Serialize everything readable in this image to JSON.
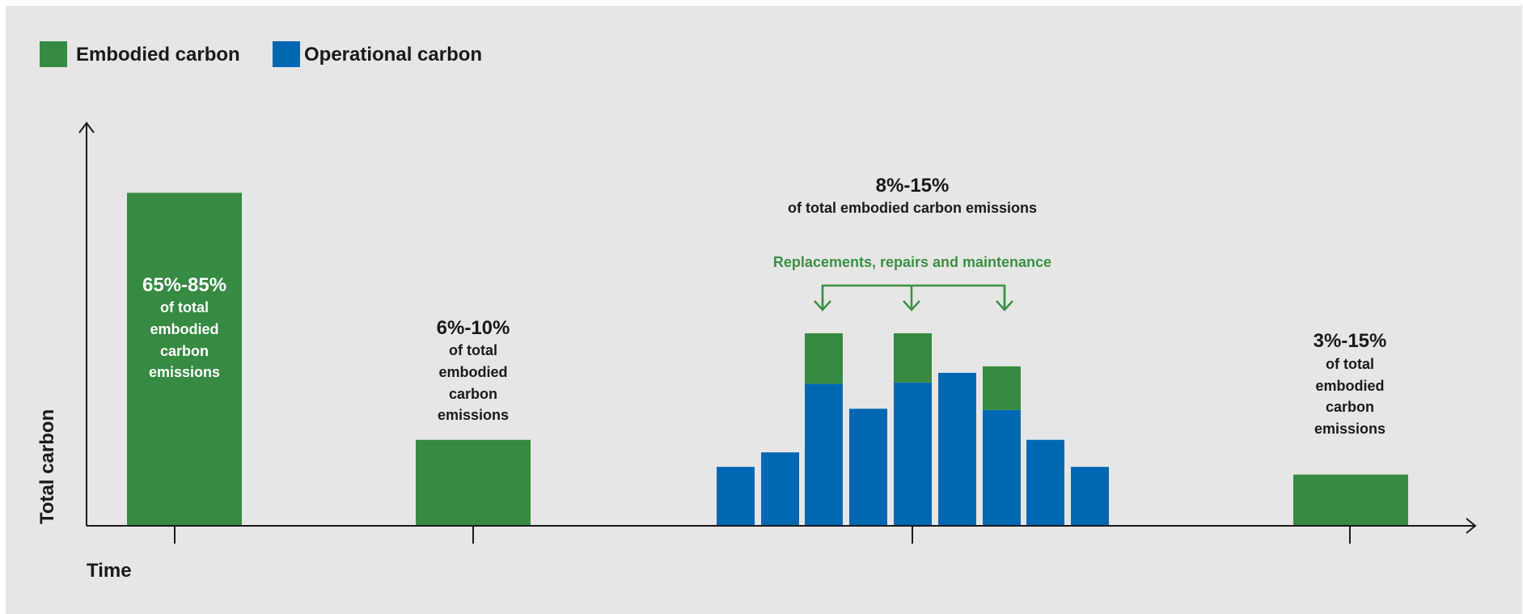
{
  "colors": {
    "embodied": "#368a42",
    "operational": "#0068b3",
    "annotation": "#3a9143",
    "text_dark": "#1a1a1a",
    "text_light": "#ffffff",
    "background": "#e6e6e6"
  },
  "chart_data": {
    "type": "bar",
    "stacked": true,
    "xlabel": "Time",
    "ylabel": "Total carbon",
    "ylim": [
      0,
      100
    ],
    "legend_position": "top-left",
    "series": [
      {
        "name": "Embodied carbon",
        "color": "#368a42",
        "key": "embodied"
      },
      {
        "name": "Operational carbon",
        "color": "#0068b3",
        "key": "operational"
      }
    ],
    "bars": [
      {
        "embodied": 82.3,
        "operational": 0
      },
      {
        "embodied": 21.1,
        "operational": 0
      },
      {
        "embodied": 0,
        "operational": 14.4
      },
      {
        "embodied": 0,
        "operational": 18.0
      },
      {
        "embodied": 12.5,
        "operational": 35.0
      },
      {
        "embodied": 0,
        "operational": 28.8
      },
      {
        "embodied": 12.2,
        "operational": 35.3
      },
      {
        "embodied": 0,
        "operational": 37.7
      },
      {
        "embodied": 10.8,
        "operational": 28.5
      },
      {
        "embodied": 0,
        "operational": 21.1
      },
      {
        "embodied": 0,
        "operational": 14.4
      },
      {
        "embodied": 12.5,
        "operational": 0
      }
    ],
    "annotations": [
      {
        "pct": "65%-85%",
        "lines": [
          "of total",
          "embodied",
          "carbon",
          "emissions"
        ]
      },
      {
        "pct": "6%-10%",
        "lines": [
          "of total",
          "embodied",
          "carbon",
          "emissions"
        ]
      },
      {
        "pct": "8%-15%",
        "lines": [
          "of total embodied carbon emissions"
        ]
      },
      {
        "pct": "3%-15%",
        "lines": [
          "of total",
          "embodied",
          "carbon",
          "emissions"
        ]
      }
    ],
    "bracket_label": "Replacements, repairs and maintenance"
  }
}
